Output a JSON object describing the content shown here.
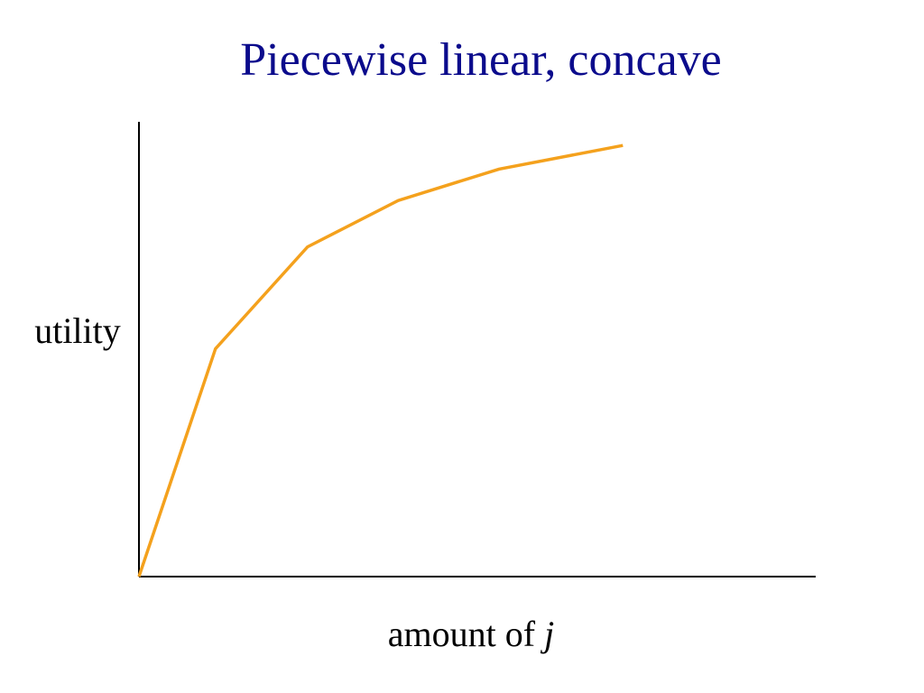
{
  "title": "Piecewise linear, concave",
  "chart_data": {
    "type": "line",
    "title": "Piecewise linear, concave",
    "xlabel_prefix": "amount of ",
    "xlabel_var": "j",
    "ylabel": "utility",
    "xlim": [
      0,
      10
    ],
    "ylim": [
      0,
      10
    ],
    "grid": false,
    "x_ticks": false,
    "y_ticks": false,
    "series": [
      {
        "x": [
          0,
          1.13,
          2.49,
          3.83,
          5.32,
          7.15
        ],
        "y": [
          0,
          5.01,
          7.25,
          8.27,
          8.96,
          9.48
        ]
      }
    ]
  },
  "colors": {
    "line": "#f4a11d",
    "axis": "#000000",
    "title": "#0b0b8c"
  }
}
